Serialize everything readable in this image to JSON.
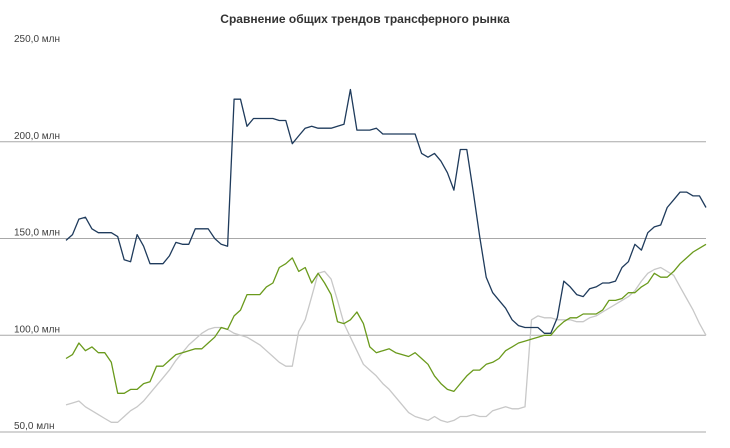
{
  "chart_data": {
    "type": "line",
    "title": "Сравнение общих трендов трансферного рынка",
    "xlabel": "",
    "ylabel": "",
    "ylim": [
      50,
      250
    ],
    "yticks": [
      {
        "value": 50,
        "label": "50,0 млн"
      },
      {
        "value": 100,
        "label": "100,0 млн"
      },
      {
        "value": 150,
        "label": "150,0 млн"
      },
      {
        "value": 200,
        "label": "200,0 млн"
      },
      {
        "value": 250,
        "label": "250,0 млн"
      }
    ],
    "grid": true,
    "legend": "none",
    "x_count": 100,
    "series": [
      {
        "color": "#1f3b5c",
        "values": [
          149,
          152,
          160,
          161,
          155,
          153,
          153,
          153,
          151,
          139,
          138,
          152,
          146,
          137,
          137,
          137,
          141,
          148,
          147,
          147,
          155,
          155,
          155,
          150,
          147,
          146,
          222,
          222,
          208,
          212,
          212,
          212,
          212,
          211,
          211,
          199,
          203,
          207,
          208,
          207,
          207,
          207,
          208,
          209,
          227,
          206,
          206,
          206,
          207,
          204,
          204,
          204,
          204,
          204,
          204,
          194,
          192,
          194,
          190,
          184,
          175,
          196,
          196,
          174,
          151,
          130,
          122,
          118,
          114,
          108,
          105,
          104,
          104,
          104,
          101,
          101,
          109,
          128,
          125,
          121,
          120,
          124,
          125,
          127,
          127,
          128,
          135,
          138,
          147,
          144,
          153,
          156,
          157,
          166,
          170,
          174,
          174,
          172,
          172,
          166
        ]
      },
      {
        "color": "#6a9a1c",
        "values": [
          88,
          90,
          96,
          92,
          94,
          91,
          91,
          86,
          70,
          70,
          72,
          72,
          75,
          76,
          84,
          84,
          87,
          90,
          91,
          92,
          93,
          93,
          96,
          99,
          104,
          103,
          110,
          113,
          121,
          121,
          121,
          125,
          127,
          135,
          137,
          140,
          133,
          135,
          127,
          132,
          127,
          121,
          107,
          106,
          108,
          112,
          106,
          94,
          91,
          92,
          93,
          91,
          90,
          89,
          91,
          88,
          85,
          79,
          75,
          72,
          71,
          75,
          79,
          82,
          82,
          85,
          86,
          88,
          92,
          94,
          96,
          97,
          98,
          99,
          100,
          100,
          104,
          107,
          109,
          109,
          111,
          111,
          111,
          113,
          118,
          118,
          119,
          122,
          122,
          125,
          127,
          132,
          130,
          130,
          133,
          137,
          140,
          143,
          145,
          147
        ]
      },
      {
        "color": "#c8c8c8",
        "values": [
          64,
          65,
          66,
          63,
          61,
          59,
          57,
          55,
          55,
          58,
          61,
          63,
          66,
          70,
          74,
          78,
          82,
          87,
          91,
          95,
          98,
          101,
          103,
          104,
          104,
          103,
          101,
          100,
          99,
          97,
          95,
          92,
          89,
          86,
          84,
          84,
          102,
          108,
          120,
          132,
          133,
          129,
          118,
          106,
          99,
          92,
          85,
          82,
          79,
          75,
          72,
          68,
          64,
          60,
          58,
          57,
          56,
          58,
          56,
          55,
          56,
          58,
          58,
          59,
          58,
          58,
          61,
          62,
          63,
          62,
          62,
          63,
          108,
          110,
          109,
          109,
          108,
          108,
          108,
          107,
          107,
          109,
          110,
          112,
          114,
          116,
          118,
          120,
          123,
          128,
          132,
          134,
          135,
          133,
          131,
          125,
          119,
          113,
          106,
          100
        ]
      }
    ]
  }
}
